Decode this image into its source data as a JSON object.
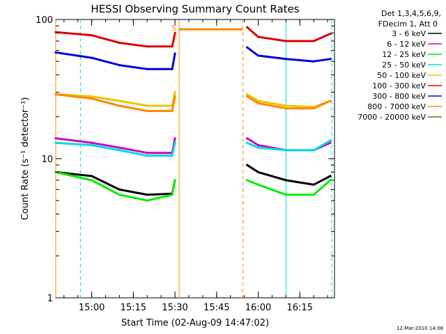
{
  "chart_data": {
    "type": "line",
    "title": "HESSI Observing Summary Count Rates",
    "xlabel": "Start Time (02-Aug-09 14:47:02)",
    "ylabel": "Count Rate (s⁻¹ detector⁻¹)",
    "y_scale": "log",
    "ylim": [
      1,
      100
    ],
    "xlim": [
      "14:47:02",
      "16:27:30"
    ],
    "x_tick_labels": [
      "15:00",
      "15:15",
      "15:30",
      "15:45",
      "16:00",
      "16:15"
    ],
    "x_ticks": [
      "15:00",
      "15:15",
      "15:30",
      "15:45",
      "16:00",
      "16:15"
    ],
    "y_tick_labels": [
      "1",
      "10",
      "100"
    ],
    "legend_header": [
      "Det 1,3,4,5,6,9,",
      "FDecim 1, Att 0"
    ],
    "legend_placement": "right-outside",
    "series": [
      {
        "name": "3 - 6 keV",
        "color": "#000000",
        "x": [
          "14:47",
          "15:00",
          "15:10",
          "15:20",
          "15:29",
          "15:30",
          "15:56",
          "16:00",
          "16:10",
          "16:20",
          "16:26"
        ],
        "values": [
          8.0,
          7.5,
          6.0,
          5.5,
          5.6,
          7.0,
          9.0,
          8.0,
          7.0,
          6.5,
          7.5
        ]
      },
      {
        "name": "6 - 12 keV",
        "color": "#cc00cc",
        "x": [
          "14:47",
          "15:00",
          "15:10",
          "15:20",
          "15:29",
          "15:30",
          "15:56",
          "16:00",
          "16:10",
          "16:20",
          "16:26"
        ],
        "values": [
          14.0,
          13.0,
          12.0,
          11.0,
          11.0,
          14.0,
          14.0,
          12.5,
          11.5,
          11.5,
          13.0
        ]
      },
      {
        "name": "12 - 25 keV",
        "color": "#00ee00",
        "x": [
          "14:47",
          "15:00",
          "15:10",
          "15:20",
          "15:29",
          "15:30",
          "15:56",
          "16:00",
          "16:10",
          "16:20",
          "16:26"
        ],
        "values": [
          8.0,
          7.0,
          5.5,
          5.0,
          5.5,
          7.0,
          7.0,
          6.5,
          5.5,
          5.5,
          7.0
        ]
      },
      {
        "name": "25 - 50 keV",
        "color": "#00dddd",
        "x": [
          "14:47",
          "15:00",
          "15:10",
          "15:20",
          "15:29",
          "15:30",
          "15:56",
          "16:00",
          "16:10",
          "16:20",
          "16:26"
        ],
        "values": [
          13.0,
          12.5,
          11.5,
          10.5,
          10.5,
          13.0,
          13.0,
          12.0,
          11.5,
          11.5,
          13.5
        ]
      },
      {
        "name": "50 - 100 keV",
        "color": "#e6c800",
        "x": [
          "14:47",
          "15:00",
          "15:10",
          "15:20",
          "15:29",
          "15:30",
          "15:56",
          "16:00",
          "16:10",
          "16:20",
          "16:26"
        ],
        "values": [
          29.0,
          28.0,
          26.0,
          24.0,
          24.0,
          30.0,
          29.0,
          26.0,
          24.0,
          23.5,
          26.0
        ]
      },
      {
        "name": "100 - 300 keV",
        "color": "#dd0000",
        "x": [
          "14:47",
          "15:00",
          "15:10",
          "15:20",
          "15:29",
          "15:30",
          "15:56",
          "16:00",
          "16:10",
          "16:20",
          "16:26"
        ],
        "values": [
          81.0,
          77.0,
          68.0,
          64.0,
          64.0,
          80.0,
          88.0,
          75.0,
          70.0,
          70.0,
          79.0
        ]
      },
      {
        "name": "300 - 800 keV",
        "color": "#0000dd",
        "x": [
          "14:47",
          "15:00",
          "15:10",
          "15:20",
          "15:29",
          "15:30",
          "15:56",
          "16:00",
          "16:10",
          "16:20",
          "16:26"
        ],
        "values": [
          58.0,
          53.0,
          47.0,
          44.0,
          44.0,
          57.0,
          63.0,
          55.0,
          52.0,
          50.0,
          52.0
        ]
      },
      {
        "name": "800 - 7000 keV",
        "color": "#ff8800",
        "x": [
          "14:47",
          "15:00",
          "15:10",
          "15:20",
          "15:29",
          "15:30",
          "15:56",
          "16:00",
          "16:10",
          "16:20",
          "16:26"
        ],
        "values": [
          29.0,
          27.0,
          24.0,
          22.0,
          22.0,
          28.0,
          28.0,
          25.0,
          23.0,
          23.0,
          26.0
        ]
      },
      {
        "name": "7000 - 20000 keV",
        "color": "#886600",
        "x": [],
        "values": []
      }
    ],
    "saa_segment": {
      "from": "15:31:30",
      "to": "15:54:30",
      "value": 85,
      "color": "#ff8800",
      "label": "S"
    },
    "solid_vlines": [
      {
        "time": "14:47:02",
        "color": "#ff8800"
      },
      {
        "time": "15:31:30",
        "color": "#ff8800"
      },
      {
        "time": "16:10:00",
        "color": "#00dddd"
      }
    ],
    "dashed_vlines": [
      {
        "time": "14:55:55",
        "color": "#00dddd"
      },
      {
        "time": "15:54:30",
        "color": "#ff8800"
      },
      {
        "time": "16:26:30",
        "color": "#00dddd"
      }
    ],
    "grid": false
  },
  "footer_date": "12-Mar-2010 14:08"
}
